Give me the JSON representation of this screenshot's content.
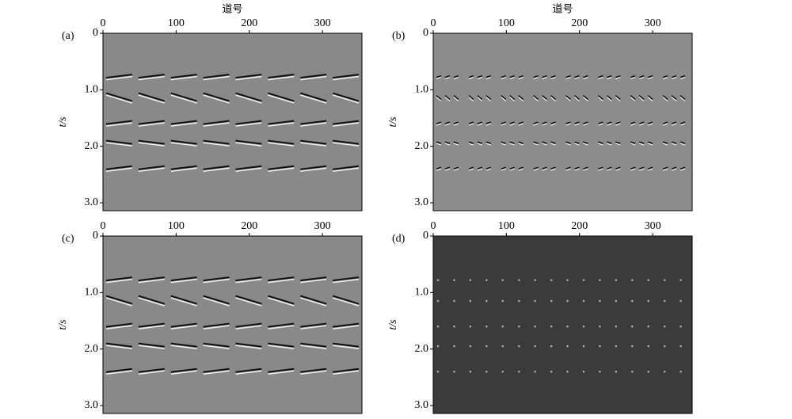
{
  "chart_data": [
    {
      "type": "seismic",
      "panel_label": "(a)",
      "xlabel": "道号",
      "ylabel": "t/s",
      "xlim": [
        0,
        354
      ],
      "ylim": [
        0,
        3.14
      ],
      "y_inverted": true,
      "xticks": [
        0,
        100,
        200,
        300
      ],
      "yticks": [
        0,
        {
          "value": 1,
          "label": "1.0"
        },
        {
          "value": 2,
          "label": "2.0"
        },
        {
          "value": 3,
          "label": "3.0"
        }
      ],
      "background": "#898989",
      "events": [
        0.78,
        1.15,
        1.6,
        1.95,
        2.4
      ],
      "event_style": "continuous"
    },
    {
      "type": "seismic",
      "panel_label": "(b)",
      "xlabel": "道号",
      "ylabel": "t/s",
      "xlim": [
        0,
        354
      ],
      "ylim": [
        0,
        3.14
      ],
      "y_inverted": true,
      "xticks": [
        0,
        100,
        200,
        300
      ],
      "yticks": [
        0,
        {
          "value": 1,
          "label": "1.0"
        },
        {
          "value": 2,
          "label": "2.0"
        },
        {
          "value": 3,
          "label": "3.0"
        }
      ],
      "background": "#8c8c8c",
      "events": [
        0.78,
        1.15,
        1.6,
        1.95,
        2.4
      ],
      "event_style": "broken"
    },
    {
      "type": "seismic",
      "panel_label": "(c)",
      "ylabel": "t/s",
      "xlim": [
        0,
        354
      ],
      "ylim": [
        0,
        3.14
      ],
      "y_inverted": true,
      "xticks": [
        0,
        100,
        200,
        300
      ],
      "yticks": [
        0,
        {
          "value": 1,
          "label": "1.0"
        },
        {
          "value": 2,
          "label": "2.0"
        },
        {
          "value": 3,
          "label": "3.0"
        }
      ],
      "background": "#898989",
      "events": [
        0.78,
        1.15,
        1.6,
        1.95,
        2.4
      ],
      "event_style": "continuous"
    },
    {
      "type": "seismic",
      "panel_label": "(d)",
      "ylabel": "t/s",
      "xlim": [
        0,
        354
      ],
      "ylim": [
        0,
        3.14
      ],
      "y_inverted": true,
      "xticks": [
        0,
        100,
        200,
        300
      ],
      "yticks": [
        0,
        {
          "value": 1,
          "label": "1.0"
        },
        {
          "value": 2,
          "label": "2.0"
        },
        {
          "value": 3,
          "label": "3.0"
        }
      ],
      "background": "#3b3b3b",
      "events": [
        0.78,
        1.15,
        1.6,
        1.95,
        2.4
      ],
      "event_style": "dots"
    }
  ]
}
